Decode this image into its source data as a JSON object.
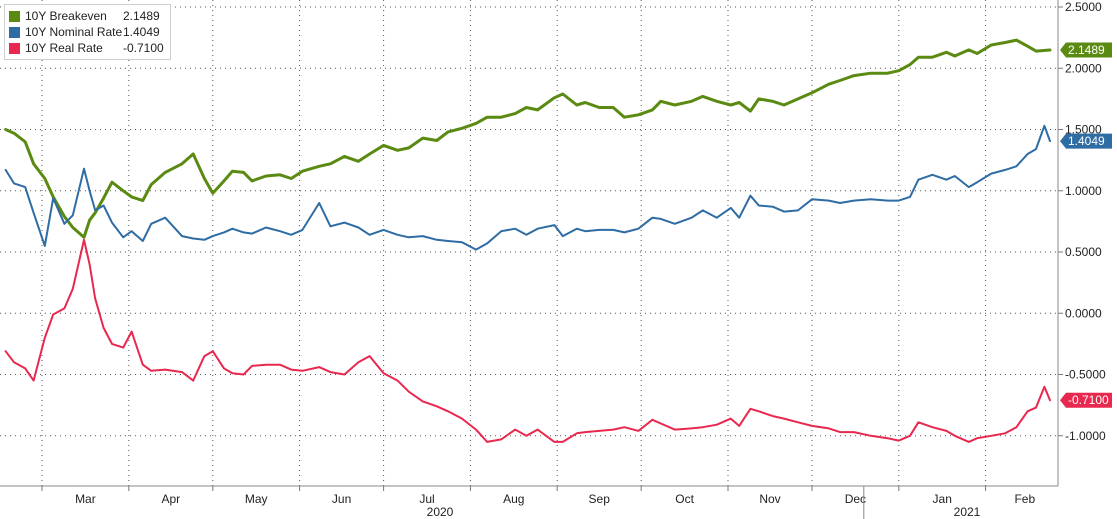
{
  "chart_data": {
    "type": "line",
    "title": "",
    "xlabel": "",
    "ylabel": "",
    "ylim": [
      -1.25,
      2.5
    ],
    "y_ticks": [
      "2.5000",
      "2.0000",
      "1.5000",
      "1.0000",
      "0.5000",
      "0.0000",
      "-0.5000",
      "-1.0000"
    ],
    "month_labels": [
      "Mar",
      "Apr",
      "May",
      "Jun",
      "Jul",
      "Aug",
      "Sep",
      "Oct",
      "Nov",
      "Dec",
      "Jan",
      "Feb"
    ],
    "year_labels": [
      "2020",
      "2021"
    ],
    "grid": true,
    "legend_position": "top-left",
    "series": [
      {
        "name": "10Y Breakeven",
        "last_label": "2.1489",
        "color": "#5a8a12",
        "points": [
          [
            "2020-02-17",
            1.5
          ],
          [
            "2020-02-20",
            1.47
          ],
          [
            "2020-02-24",
            1.4
          ],
          [
            "2020-02-27",
            1.22
          ],
          [
            "2020-03-02",
            1.1
          ],
          [
            "2020-03-05",
            0.95
          ],
          [
            "2020-03-09",
            0.79
          ],
          [
            "2020-03-12",
            0.7
          ],
          [
            "2020-03-16",
            0.62
          ],
          [
            "2020-03-18",
            0.76
          ],
          [
            "2020-03-20",
            0.82
          ],
          [
            "2020-03-23",
            0.94
          ],
          [
            "2020-03-26",
            1.07
          ],
          [
            "2020-03-30",
            1.0
          ],
          [
            "2020-04-02",
            0.95
          ],
          [
            "2020-04-06",
            0.92
          ],
          [
            "2020-04-09",
            1.05
          ],
          [
            "2020-04-14",
            1.15
          ],
          [
            "2020-04-20",
            1.22
          ],
          [
            "2020-04-24",
            1.3
          ],
          [
            "2020-04-28",
            1.1
          ],
          [
            "2020-05-01",
            0.98
          ],
          [
            "2020-05-05",
            1.08
          ],
          [
            "2020-05-08",
            1.16
          ],
          [
            "2020-05-12",
            1.15
          ],
          [
            "2020-05-15",
            1.08
          ],
          [
            "2020-05-20",
            1.12
          ],
          [
            "2020-05-25",
            1.13
          ],
          [
            "2020-05-29",
            1.1
          ],
          [
            "2020-06-02",
            1.16
          ],
          [
            "2020-06-08",
            1.2
          ],
          [
            "2020-06-12",
            1.22
          ],
          [
            "2020-06-17",
            1.28
          ],
          [
            "2020-06-22",
            1.24
          ],
          [
            "2020-06-26",
            1.3
          ],
          [
            "2020-07-01",
            1.37
          ],
          [
            "2020-07-06",
            1.33
          ],
          [
            "2020-07-10",
            1.35
          ],
          [
            "2020-07-15",
            1.43
          ],
          [
            "2020-07-20",
            1.41
          ],
          [
            "2020-07-24",
            1.48
          ],
          [
            "2020-07-29",
            1.51
          ],
          [
            "2020-08-03",
            1.55
          ],
          [
            "2020-08-07",
            1.6
          ],
          [
            "2020-08-12",
            1.6
          ],
          [
            "2020-08-17",
            1.63
          ],
          [
            "2020-08-21",
            1.68
          ],
          [
            "2020-08-25",
            1.66
          ],
          [
            "2020-08-31",
            1.76
          ],
          [
            "2020-09-03",
            1.79
          ],
          [
            "2020-09-08",
            1.7
          ],
          [
            "2020-09-11",
            1.72
          ],
          [
            "2020-09-16",
            1.68
          ],
          [
            "2020-09-21",
            1.68
          ],
          [
            "2020-09-25",
            1.6
          ],
          [
            "2020-09-30",
            1.62
          ],
          [
            "2020-10-05",
            1.66
          ],
          [
            "2020-10-08",
            1.73
          ],
          [
            "2020-10-13",
            1.7
          ],
          [
            "2020-10-19",
            1.73
          ],
          [
            "2020-10-23",
            1.77
          ],
          [
            "2020-10-28",
            1.73
          ],
          [
            "2020-11-02",
            1.7
          ],
          [
            "2020-11-05",
            1.72
          ],
          [
            "2020-11-09",
            1.65
          ],
          [
            "2020-11-12",
            1.75
          ],
          [
            "2020-11-17",
            1.73
          ],
          [
            "2020-11-21",
            1.7
          ],
          [
            "2020-11-26",
            1.75
          ],
          [
            "2020-12-01",
            1.8
          ],
          [
            "2020-12-07",
            1.87
          ],
          [
            "2020-12-11",
            1.9
          ],
          [
            "2020-12-16",
            1.94
          ],
          [
            "2020-12-22",
            1.96
          ],
          [
            "2020-12-28",
            1.96
          ],
          [
            "2021-01-01",
            1.98
          ],
          [
            "2021-01-05",
            2.03
          ],
          [
            "2021-01-08",
            2.09
          ],
          [
            "2021-01-13",
            2.09
          ],
          [
            "2021-01-18",
            2.13
          ],
          [
            "2021-01-21",
            2.1
          ],
          [
            "2021-01-26",
            2.15
          ],
          [
            "2021-01-29",
            2.12
          ],
          [
            "2021-02-03",
            2.19
          ],
          [
            "2021-02-08",
            2.21
          ],
          [
            "2021-02-12",
            2.23
          ],
          [
            "2021-02-16",
            2.18
          ],
          [
            "2021-02-19",
            2.14
          ],
          [
            "2021-02-24",
            2.1489
          ]
        ]
      },
      {
        "name": "10Y Nominal Rate",
        "last_label": "1.4049",
        "color": "#2e6ca4",
        "points": [
          [
            "2020-02-17",
            1.17
          ],
          [
            "2020-02-20",
            1.06
          ],
          [
            "2020-02-24",
            1.03
          ],
          [
            "2020-02-27",
            0.82
          ],
          [
            "2020-03-02",
            0.55
          ],
          [
            "2020-03-05",
            0.94
          ],
          [
            "2020-03-09",
            0.73
          ],
          [
            "2020-03-12",
            0.8
          ],
          [
            "2020-03-16",
            1.18
          ],
          [
            "2020-03-18",
            1.0
          ],
          [
            "2020-03-20",
            0.84
          ],
          [
            "2020-03-23",
            0.88
          ],
          [
            "2020-03-26",
            0.74
          ],
          [
            "2020-03-30",
            0.62
          ],
          [
            "2020-04-02",
            0.67
          ],
          [
            "2020-04-06",
            0.59
          ],
          [
            "2020-04-09",
            0.73
          ],
          [
            "2020-04-14",
            0.78
          ],
          [
            "2020-04-20",
            0.63
          ],
          [
            "2020-04-24",
            0.61
          ],
          [
            "2020-04-28",
            0.6
          ],
          [
            "2020-05-01",
            0.63
          ],
          [
            "2020-05-05",
            0.66
          ],
          [
            "2020-05-08",
            0.69
          ],
          [
            "2020-05-12",
            0.66
          ],
          [
            "2020-05-15",
            0.65
          ],
          [
            "2020-05-20",
            0.7
          ],
          [
            "2020-05-25",
            0.67
          ],
          [
            "2020-05-29",
            0.64
          ],
          [
            "2020-06-02",
            0.68
          ],
          [
            "2020-06-08",
            0.9
          ],
          [
            "2020-06-12",
            0.71
          ],
          [
            "2020-06-17",
            0.74
          ],
          [
            "2020-06-22",
            0.7
          ],
          [
            "2020-06-26",
            0.64
          ],
          [
            "2020-07-01",
            0.68
          ],
          [
            "2020-07-06",
            0.64
          ],
          [
            "2020-07-10",
            0.62
          ],
          [
            "2020-07-15",
            0.63
          ],
          [
            "2020-07-20",
            0.6
          ],
          [
            "2020-07-24",
            0.59
          ],
          [
            "2020-07-29",
            0.58
          ],
          [
            "2020-08-03",
            0.52
          ],
          [
            "2020-08-07",
            0.57
          ],
          [
            "2020-08-12",
            0.67
          ],
          [
            "2020-08-17",
            0.69
          ],
          [
            "2020-08-21",
            0.64
          ],
          [
            "2020-08-25",
            0.69
          ],
          [
            "2020-08-31",
            0.72
          ],
          [
            "2020-09-03",
            0.63
          ],
          [
            "2020-09-08",
            0.69
          ],
          [
            "2020-09-11",
            0.67
          ],
          [
            "2020-09-16",
            0.68
          ],
          [
            "2020-09-21",
            0.68
          ],
          [
            "2020-09-25",
            0.66
          ],
          [
            "2020-09-30",
            0.69
          ],
          [
            "2020-10-05",
            0.78
          ],
          [
            "2020-10-08",
            0.77
          ],
          [
            "2020-10-13",
            0.73
          ],
          [
            "2020-10-19",
            0.78
          ],
          [
            "2020-10-23",
            0.84
          ],
          [
            "2020-10-28",
            0.78
          ],
          [
            "2020-11-02",
            0.86
          ],
          [
            "2020-11-05",
            0.78
          ],
          [
            "2020-11-09",
            0.96
          ],
          [
            "2020-11-12",
            0.88
          ],
          [
            "2020-11-17",
            0.87
          ],
          [
            "2020-11-21",
            0.83
          ],
          [
            "2020-11-26",
            0.84
          ],
          [
            "2020-12-01",
            0.93
          ],
          [
            "2020-12-07",
            0.92
          ],
          [
            "2020-12-11",
            0.9
          ],
          [
            "2020-12-16",
            0.92
          ],
          [
            "2020-12-22",
            0.93
          ],
          [
            "2020-12-28",
            0.92
          ],
          [
            "2021-01-01",
            0.92
          ],
          [
            "2021-01-05",
            0.95
          ],
          [
            "2021-01-08",
            1.09
          ],
          [
            "2021-01-13",
            1.13
          ],
          [
            "2021-01-18",
            1.09
          ],
          [
            "2021-01-21",
            1.12
          ],
          [
            "2021-01-26",
            1.03
          ],
          [
            "2021-01-29",
            1.07
          ],
          [
            "2021-02-03",
            1.14
          ],
          [
            "2021-02-08",
            1.17
          ],
          [
            "2021-02-12",
            1.2
          ],
          [
            "2021-02-16",
            1.3
          ],
          [
            "2021-02-19",
            1.34
          ],
          [
            "2021-02-22",
            1.53
          ],
          [
            "2021-02-24",
            1.4049
          ]
        ]
      },
      {
        "name": "10Y Real Rate",
        "last_label": "-0.7100",
        "color": "#e8284e",
        "points": [
          [
            "2020-02-17",
            -0.31
          ],
          [
            "2020-02-20",
            -0.4
          ],
          [
            "2020-02-24",
            -0.45
          ],
          [
            "2020-02-27",
            -0.55
          ],
          [
            "2020-03-02",
            -0.2
          ],
          [
            "2020-03-05",
            -0.01
          ],
          [
            "2020-03-09",
            0.04
          ],
          [
            "2020-03-12",
            0.2
          ],
          [
            "2020-03-16",
            0.6
          ],
          [
            "2020-03-18",
            0.4
          ],
          [
            "2020-03-20",
            0.12
          ],
          [
            "2020-03-23",
            -0.12
          ],
          [
            "2020-03-26",
            -0.25
          ],
          [
            "2020-03-30",
            -0.28
          ],
          [
            "2020-04-02",
            -0.15
          ],
          [
            "2020-04-06",
            -0.42
          ],
          [
            "2020-04-09",
            -0.47
          ],
          [
            "2020-04-14",
            -0.46
          ],
          [
            "2020-04-20",
            -0.48
          ],
          [
            "2020-04-24",
            -0.55
          ],
          [
            "2020-04-28",
            -0.35
          ],
          [
            "2020-05-01",
            -0.31
          ],
          [
            "2020-05-05",
            -0.45
          ],
          [
            "2020-05-08",
            -0.49
          ],
          [
            "2020-05-12",
            -0.5
          ],
          [
            "2020-05-15",
            -0.43
          ],
          [
            "2020-05-20",
            -0.42
          ],
          [
            "2020-05-25",
            -0.42
          ],
          [
            "2020-05-29",
            -0.46
          ],
          [
            "2020-06-02",
            -0.47
          ],
          [
            "2020-06-08",
            -0.44
          ],
          [
            "2020-06-12",
            -0.48
          ],
          [
            "2020-06-17",
            -0.5
          ],
          [
            "2020-06-22",
            -0.4
          ],
          [
            "2020-06-26",
            -0.35
          ],
          [
            "2020-07-01",
            -0.49
          ],
          [
            "2020-07-06",
            -0.55
          ],
          [
            "2020-07-10",
            -0.64
          ],
          [
            "2020-07-15",
            -0.72
          ],
          [
            "2020-07-20",
            -0.76
          ],
          [
            "2020-07-24",
            -0.8
          ],
          [
            "2020-07-29",
            -0.86
          ],
          [
            "2020-08-03",
            -0.95
          ],
          [
            "2020-08-07",
            -1.05
          ],
          [
            "2020-08-12",
            -1.03
          ],
          [
            "2020-08-17",
            -0.95
          ],
          [
            "2020-08-21",
            -1.0
          ],
          [
            "2020-08-25",
            -0.95
          ],
          [
            "2020-08-31",
            -1.05
          ],
          [
            "2020-09-03",
            -1.05
          ],
          [
            "2020-09-08",
            -0.98
          ],
          [
            "2020-09-11",
            -0.97
          ],
          [
            "2020-09-16",
            -0.96
          ],
          [
            "2020-09-21",
            -0.95
          ],
          [
            "2020-09-25",
            -0.93
          ],
          [
            "2020-09-30",
            -0.96
          ],
          [
            "2020-10-05",
            -0.87
          ],
          [
            "2020-10-08",
            -0.9
          ],
          [
            "2020-10-13",
            -0.95
          ],
          [
            "2020-10-19",
            -0.94
          ],
          [
            "2020-10-23",
            -0.93
          ],
          [
            "2020-10-28",
            -0.91
          ],
          [
            "2020-11-02",
            -0.86
          ],
          [
            "2020-11-05",
            -0.92
          ],
          [
            "2020-11-09",
            -0.78
          ],
          [
            "2020-11-12",
            -0.8
          ],
          [
            "2020-11-17",
            -0.84
          ],
          [
            "2020-11-21",
            -0.86
          ],
          [
            "2020-11-26",
            -0.89
          ],
          [
            "2020-12-01",
            -0.92
          ],
          [
            "2020-12-07",
            -0.94
          ],
          [
            "2020-12-11",
            -0.97
          ],
          [
            "2020-12-16",
            -0.97
          ],
          [
            "2020-12-22",
            -1.0
          ],
          [
            "2020-12-28",
            -1.02
          ],
          [
            "2021-01-01",
            -1.04
          ],
          [
            "2021-01-05",
            -1.0
          ],
          [
            "2021-01-08",
            -0.89
          ],
          [
            "2021-01-13",
            -0.93
          ],
          [
            "2021-01-18",
            -0.96
          ],
          [
            "2021-01-21",
            -1.0
          ],
          [
            "2021-01-26",
            -1.05
          ],
          [
            "2021-01-29",
            -1.02
          ],
          [
            "2021-02-03",
            -1.0
          ],
          [
            "2021-02-08",
            -0.98
          ],
          [
            "2021-02-12",
            -0.93
          ],
          [
            "2021-02-16",
            -0.8
          ],
          [
            "2021-02-19",
            -0.77
          ],
          [
            "2021-02-22",
            -0.6
          ],
          [
            "2021-02-24",
            -0.71
          ]
        ]
      }
    ]
  }
}
